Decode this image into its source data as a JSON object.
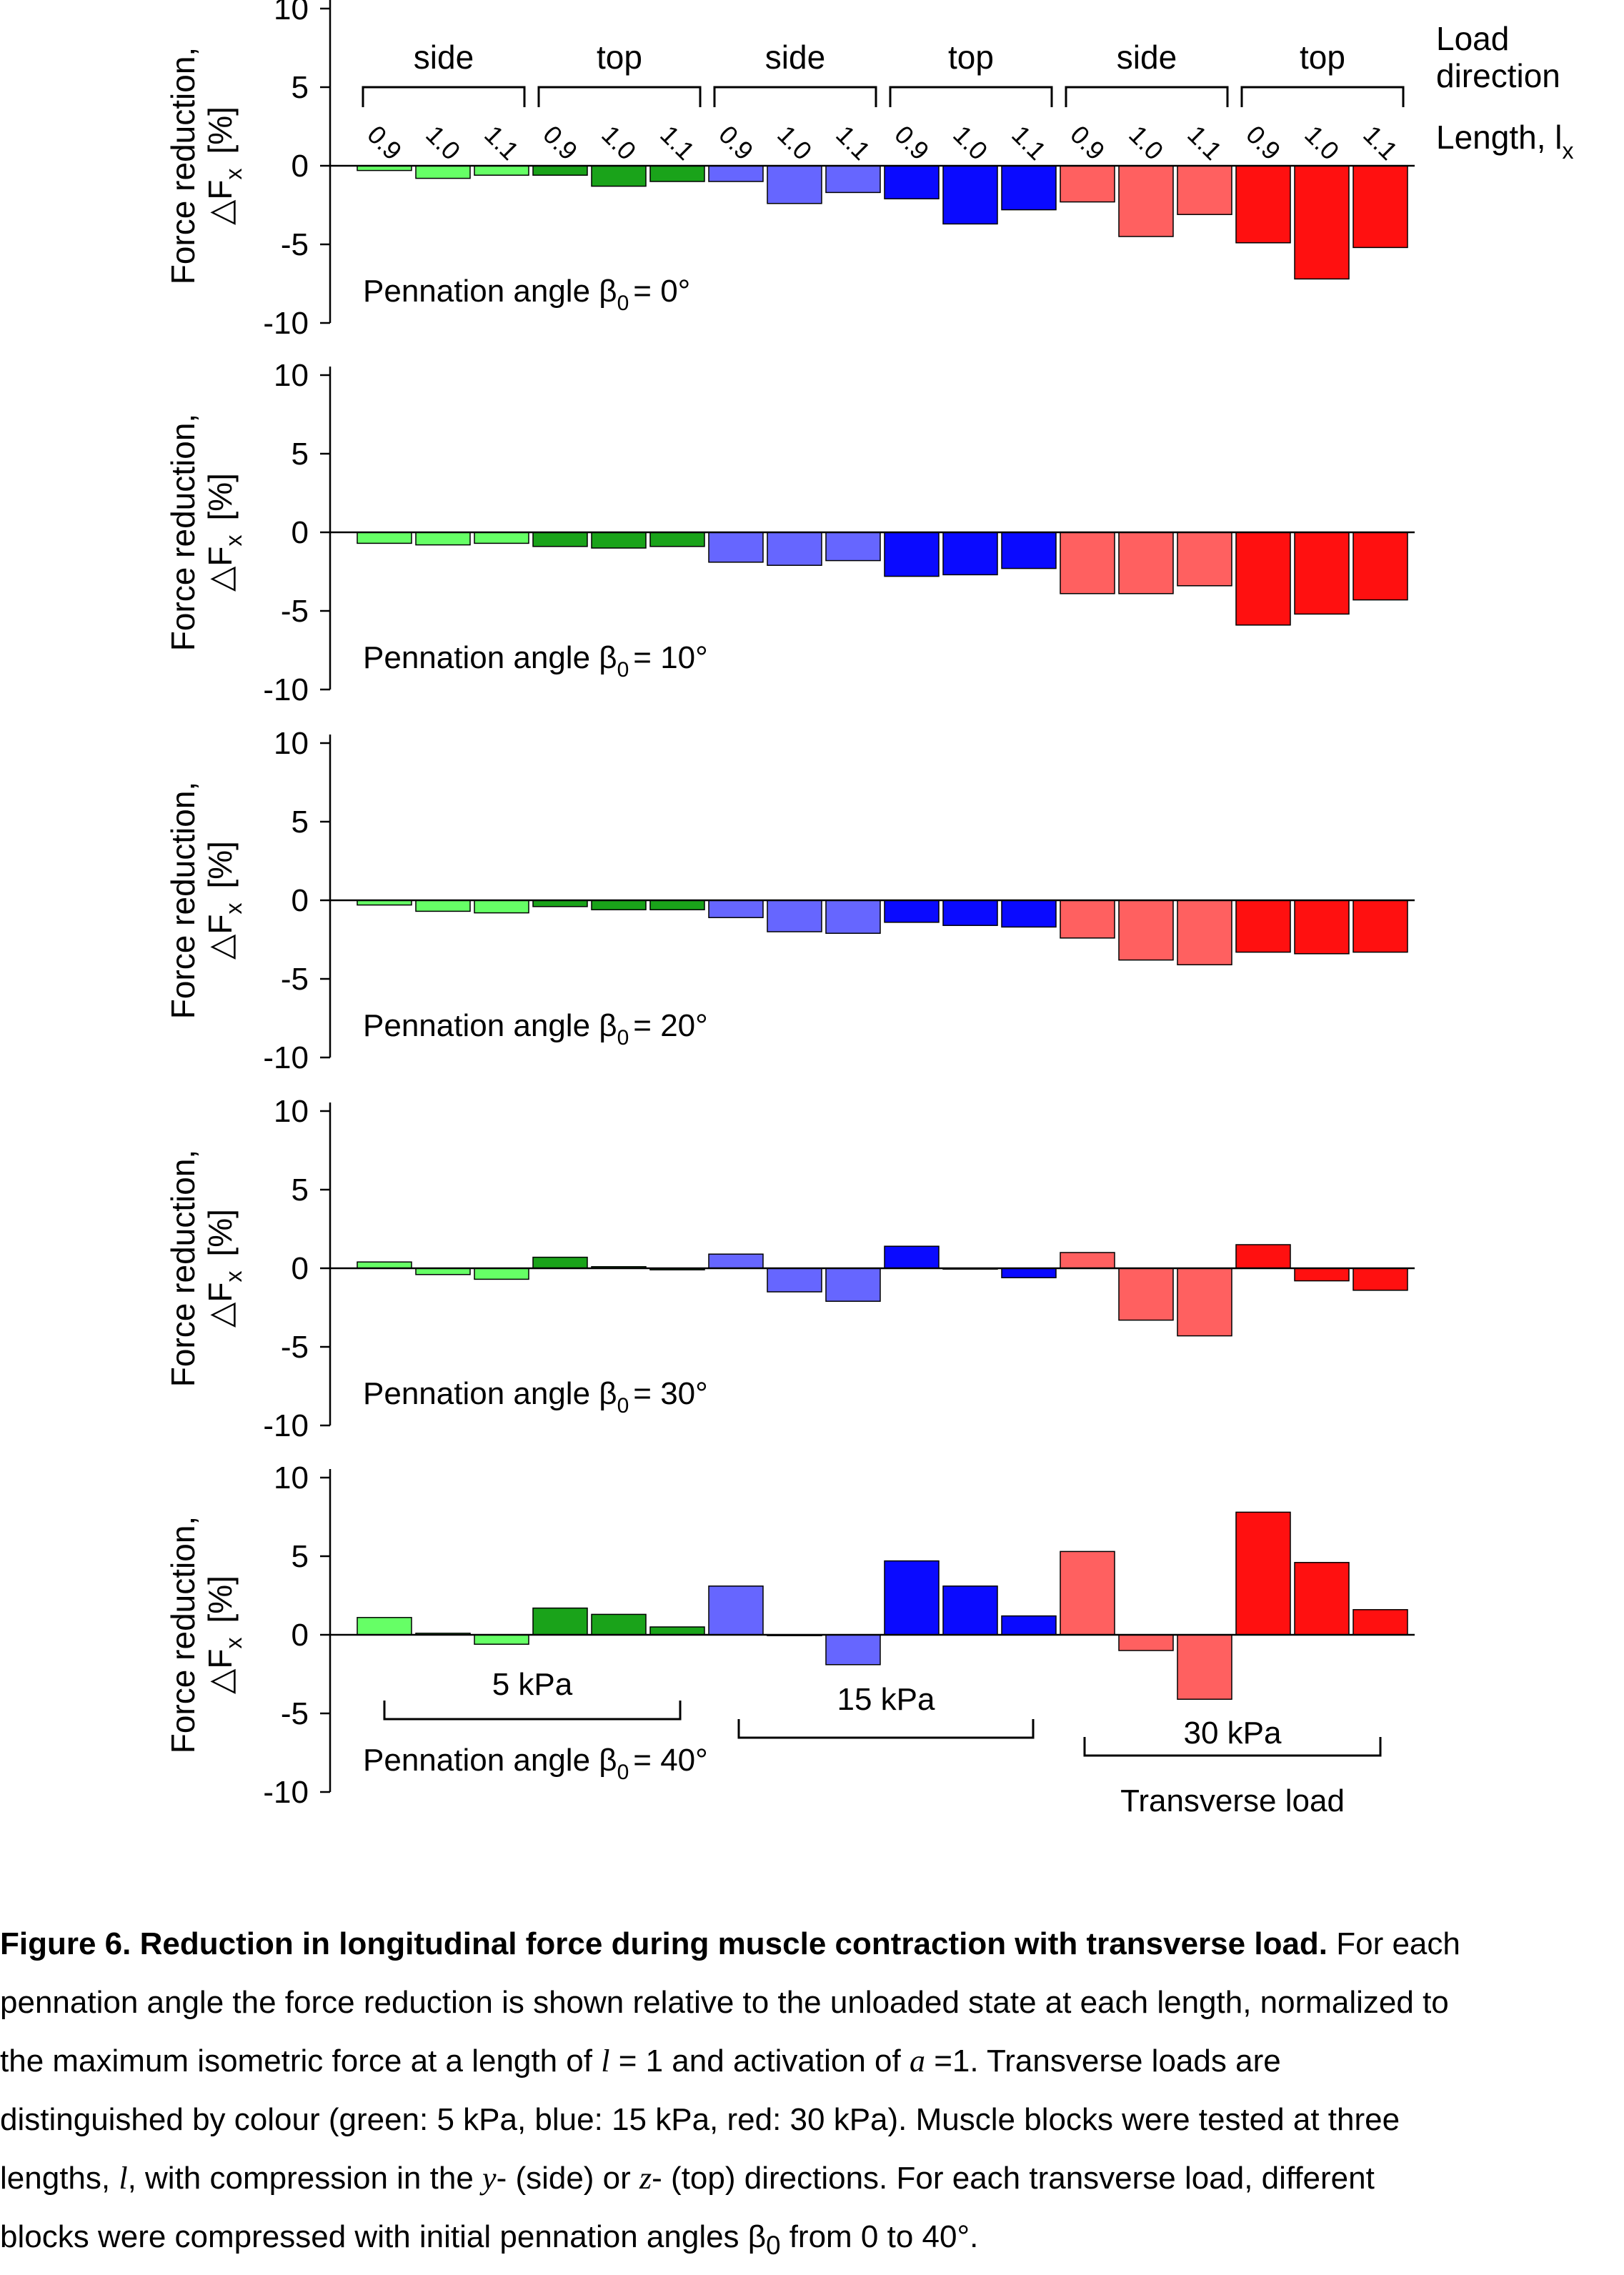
{
  "colors": {
    "5 kPa": {
      "side": "#66ff66",
      "top": "#1aa31a"
    },
    "15 kPa": {
      "side": "#6666ff",
      "top": "#0a0aff"
    },
    "30 kPa": {
      "side": "#ff6060",
      "top": "#ff1010"
    }
  },
  "chart_data": {
    "type": "bar",
    "ylabel_line1": "Force reduction,",
    "ylabel_line2": "△F",
    "ylabel_sub": "x",
    "ylabel_unit": "[%]",
    "ylim": [
      -10,
      10
    ],
    "yticks": [
      10,
      5,
      0,
      -5,
      -10
    ],
    "load_direction_label_line1": "Load",
    "load_direction_label_line2": "direction",
    "length_label": "Length, l",
    "length_label_sub": "x",
    "groups": [
      {
        "load": "5 kPa",
        "direction": "side"
      },
      {
        "load": "5 kPa",
        "direction": "top"
      },
      {
        "load": "15 kPa",
        "direction": "side"
      },
      {
        "load": "15 kPa",
        "direction": "top"
      },
      {
        "load": "30 kPa",
        "direction": "side"
      },
      {
        "load": "30 kPa",
        "direction": "top"
      }
    ],
    "lengths": [
      "0.9",
      "1.0",
      "1.1"
    ],
    "loads": [
      "5 kPa",
      "15 kPa",
      "30 kPa"
    ],
    "transverse_load_label": "Transverse load",
    "panels": [
      {
        "angle_prefix": "Pennation angle β",
        "angle_sub": "0",
        "angle_value": "= 0°",
        "values": [
          -0.3,
          -0.8,
          -0.6,
          -0.6,
          -1.3,
          -1.0,
          -1.0,
          -2.4,
          -1.7,
          -2.1,
          -3.7,
          -2.8,
          -2.3,
          -4.5,
          -3.1,
          -4.9,
          -7.2,
          -5.2
        ]
      },
      {
        "angle_prefix": "Pennation angle β",
        "angle_sub": "0",
        "angle_value": "= 10°",
        "values": [
          -0.7,
          -0.8,
          -0.7,
          -0.9,
          -1.0,
          -0.9,
          -1.9,
          -2.1,
          -1.8,
          -2.8,
          -2.7,
          -2.3,
          -3.9,
          -3.9,
          -3.4,
          -5.9,
          -5.2,
          -4.3
        ]
      },
      {
        "angle_prefix": "Pennation angle β",
        "angle_sub": "0",
        "angle_value": "= 20°",
        "values": [
          -0.3,
          -0.7,
          -0.8,
          -0.4,
          -0.6,
          -0.6,
          -1.1,
          -2.0,
          -2.1,
          -1.4,
          -1.6,
          -1.7,
          -2.4,
          -3.8,
          -4.1,
          -3.3,
          -3.4,
          -3.3
        ]
      },
      {
        "angle_prefix": "Pennation angle β",
        "angle_sub": "0",
        "angle_value": "= 30°",
        "values": [
          0.4,
          -0.4,
          -0.7,
          0.7,
          0.1,
          -0.1,
          0.9,
          -1.5,
          -2.1,
          1.4,
          0.0,
          -0.6,
          1.0,
          -3.3,
          -4.3,
          1.5,
          -0.8,
          -1.4
        ]
      },
      {
        "angle_prefix": "Pennation angle β",
        "angle_sub": "0",
        "angle_value": "= 40°",
        "values": [
          1.1,
          0.1,
          -0.6,
          1.7,
          1.3,
          0.5,
          3.1,
          0.0,
          -1.9,
          4.7,
          3.1,
          1.2,
          5.3,
          -1.0,
          -4.1,
          7.8,
          4.6,
          1.6
        ]
      }
    ]
  },
  "caption": {
    "title": "Figure 6. Reduction in longitudinal force during muscle contraction with transverse load.",
    "line1_rest": " For each",
    "line2": "pennation angle the force reduction is shown relative to the unloaded state at each length, normalized to",
    "line3_a": "the maximum isometric force at a length of ",
    "line3_l": "l",
    "line3_b": " = 1 and activation of ",
    "line3_a_sym": "a",
    "line3_c": " =1. Transverse loads are",
    "line4": "distinguished by colour (green: 5 kPa, blue: 15 kPa, red: 30 kPa). Muscle blocks were tested at three",
    "line5_a": "lengths, ",
    "line5_l": "l",
    "line5_b": ", with compression in the ",
    "line5_y": "y",
    "line5_c": "- (side) or ",
    "line5_z": "z",
    "line5_d": "- (top) directions. For each transverse load, different",
    "line6_a": "blocks were compressed with initial pennation angles β",
    "line6_sub": "0",
    "line6_b": " from 0 to 40°."
  }
}
